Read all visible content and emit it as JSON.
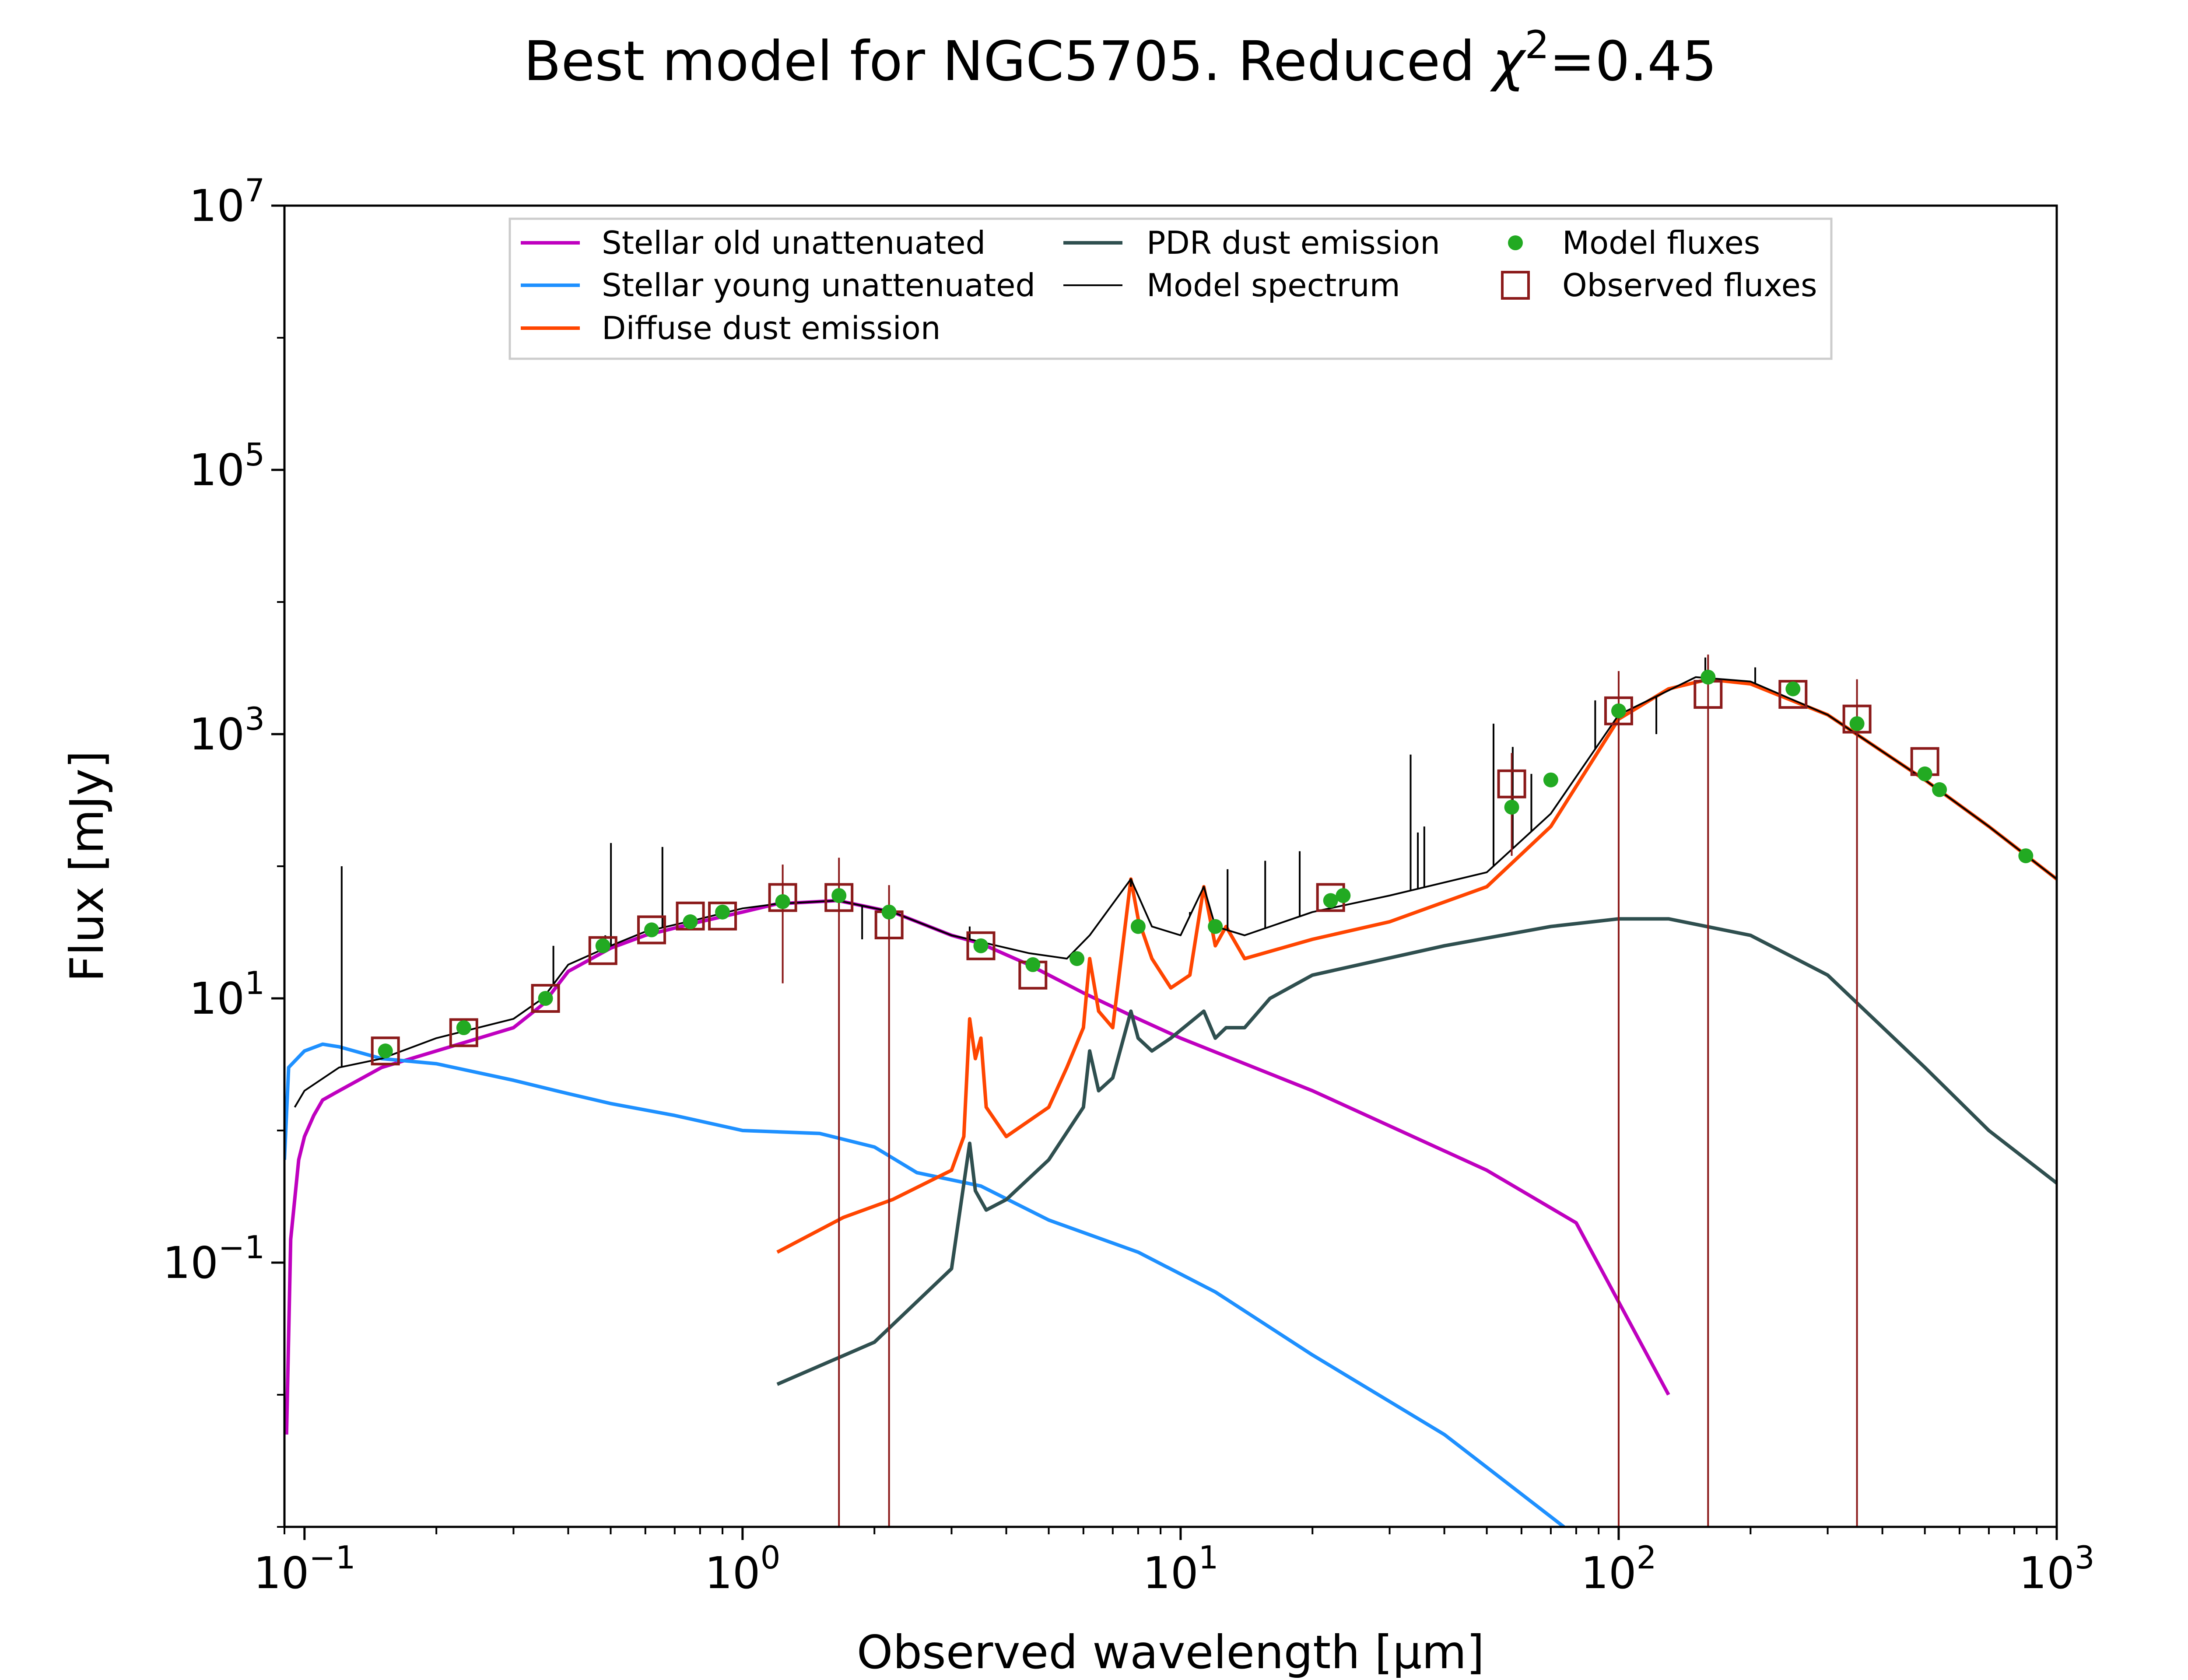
{
  "chart_data": {
    "type": "line",
    "title": "Best model for NGC5705. Reduced χ²=0.45",
    "title_parts": {
      "prefix": "Best model for NGC5705. Reduced ",
      "chi": "χ",
      "exp": "2",
      "suffix": "=0.45"
    },
    "xlabel": "Observed wavelength [μm]",
    "ylabel": "Flux [mJy]",
    "xscale": "log",
    "yscale": "log",
    "xlim": [
      0.09,
      1000
    ],
    "ylim": [
      0.001,
      10000000
    ],
    "x_ticks": [
      {
        "value": 0.1,
        "base": "10",
        "exp": "−1"
      },
      {
        "value": 1,
        "base": "10",
        "exp": "0"
      },
      {
        "value": 10,
        "base": "10",
        "exp": "1"
      },
      {
        "value": 100,
        "base": "10",
        "exp": "2"
      },
      {
        "value": 1000,
        "base": "10",
        "exp": "3"
      }
    ],
    "y_ticks": [
      {
        "value": 0.1,
        "base": "10",
        "exp": "−1"
      },
      {
        "value": 10,
        "base": "10",
        "exp": "1"
      },
      {
        "value": 1000,
        "base": "10",
        "exp": "3"
      },
      {
        "value": 100000,
        "base": "10",
        "exp": "5"
      },
      {
        "value": 10000000,
        "base": "10",
        "exp": "7"
      }
    ],
    "grid": false,
    "legend_position": "top-center",
    "legend": [
      {
        "label": "Stellar old unattenuated",
        "type": "line",
        "color": "#bf00bf"
      },
      {
        "label": "Stellar young unattenuated",
        "type": "line",
        "color": "#1e90ff"
      },
      {
        "label": "Diffuse dust emission",
        "type": "line",
        "color": "#ff4500"
      },
      {
        "label": "PDR dust emission",
        "type": "line",
        "color": "#2f4f4f"
      },
      {
        "label": "Model spectrum",
        "type": "line",
        "color": "#000000"
      },
      {
        "label": "Model fluxes",
        "type": "dot",
        "color": "#22aa22"
      },
      {
        "label": "Observed fluxes",
        "type": "square",
        "color": "#8b1a1a"
      }
    ],
    "series": [
      {
        "name": "Stellar old unattenuated",
        "color": "#bf00bf",
        "points": [
          [
            0.091,
            0.005
          ],
          [
            0.093,
            0.15
          ],
          [
            0.097,
            0.6
          ],
          [
            0.1,
            0.9
          ],
          [
            0.105,
            1.3
          ],
          [
            0.11,
            1.7
          ],
          [
            0.12,
            2.0
          ],
          [
            0.15,
            3.0
          ],
          [
            0.2,
            4.0
          ],
          [
            0.25,
            5.0
          ],
          [
            0.3,
            6.0
          ],
          [
            0.35,
            9.0
          ],
          [
            0.4,
            16
          ],
          [
            0.5,
            24
          ],
          [
            0.6,
            30
          ],
          [
            0.8,
            38
          ],
          [
            1.0,
            45
          ],
          [
            1.2,
            52
          ],
          [
            1.65,
            55
          ],
          [
            2.2,
            45
          ],
          [
            3.0,
            30
          ],
          [
            3.5,
            26
          ],
          [
            4.5,
            18
          ],
          [
            6.0,
            11
          ],
          [
            8.0,
            7
          ],
          [
            10,
            5
          ],
          [
            20,
            2
          ],
          [
            50,
            0.5
          ],
          [
            80,
            0.2
          ],
          [
            130,
            0.01
          ]
        ]
      },
      {
        "name": "Stellar young unattenuated",
        "color": "#1e90ff",
        "points": [
          [
            0.09,
            0.6
          ],
          [
            0.092,
            3.0
          ],
          [
            0.1,
            4.0
          ],
          [
            0.11,
            4.5
          ],
          [
            0.12,
            4.3
          ],
          [
            0.15,
            3.5
          ],
          [
            0.2,
            3.2
          ],
          [
            0.3,
            2.4
          ],
          [
            0.4,
            1.9
          ],
          [
            0.5,
            1.6
          ],
          [
            0.7,
            1.3
          ],
          [
            1.0,
            1.0
          ],
          [
            1.5,
            0.95
          ],
          [
            2.0,
            0.75
          ],
          [
            2.5,
            0.48
          ],
          [
            3.5,
            0.38
          ],
          [
            5.0,
            0.21
          ],
          [
            8.0,
            0.12
          ],
          [
            12,
            0.06
          ],
          [
            20,
            0.02
          ],
          [
            40,
            0.005
          ],
          [
            75,
            0.001
          ]
        ]
      },
      {
        "name": "Diffuse dust emission",
        "color": "#ff4500",
        "points": [
          [
            1.2,
            0.12
          ],
          [
            1.7,
            0.22
          ],
          [
            2.2,
            0.3
          ],
          [
            3.0,
            0.5
          ],
          [
            3.2,
            0.9
          ],
          [
            3.3,
            7.0
          ],
          [
            3.4,
            3.5
          ],
          [
            3.5,
            5.0
          ],
          [
            3.6,
            1.5
          ],
          [
            4.0,
            0.9
          ],
          [
            5.0,
            1.5
          ],
          [
            5.5,
            3.0
          ],
          [
            6.0,
            6.0
          ],
          [
            6.2,
            20
          ],
          [
            6.5,
            8.0
          ],
          [
            7.0,
            6.0
          ],
          [
            7.7,
            80
          ],
          [
            8.0,
            40
          ],
          [
            8.6,
            20
          ],
          [
            9.5,
            12
          ],
          [
            10.5,
            15
          ],
          [
            11.3,
            70
          ],
          [
            12,
            25
          ],
          [
            12.7,
            35
          ],
          [
            14,
            20
          ],
          [
            20,
            28
          ],
          [
            30,
            38
          ],
          [
            50,
            70
          ],
          [
            70,
            200
          ],
          [
            100,
            1300
          ],
          [
            130,
            2200
          ],
          [
            160,
            2600
          ],
          [
            200,
            2400
          ],
          [
            300,
            1400
          ],
          [
            500,
            450
          ],
          [
            700,
            200
          ],
          [
            1000,
            80
          ]
        ]
      },
      {
        "name": "PDR dust emission",
        "color": "#2f4f4f",
        "points": [
          [
            1.2,
            0.012
          ],
          [
            2.0,
            0.025
          ],
          [
            3.0,
            0.09
          ],
          [
            3.3,
            0.8
          ],
          [
            3.4,
            0.35
          ],
          [
            3.6,
            0.25
          ],
          [
            4.0,
            0.3
          ],
          [
            5.0,
            0.6
          ],
          [
            6.0,
            1.5
          ],
          [
            6.2,
            4.0
          ],
          [
            6.5,
            2.0
          ],
          [
            7.0,
            2.5
          ],
          [
            7.7,
            8.0
          ],
          [
            8.0,
            5.0
          ],
          [
            8.6,
            4.0
          ],
          [
            9.5,
            5.0
          ],
          [
            11.3,
            8.0
          ],
          [
            12,
            5.0
          ],
          [
            12.7,
            6.0
          ],
          [
            14,
            6.0
          ],
          [
            16,
            10
          ],
          [
            20,
            15
          ],
          [
            40,
            25
          ],
          [
            70,
            35
          ],
          [
            100,
            40
          ],
          [
            130,
            40
          ],
          [
            200,
            30
          ],
          [
            300,
            15
          ],
          [
            500,
            3.0
          ],
          [
            700,
            1.0
          ],
          [
            1000,
            0.4
          ]
        ]
      },
      {
        "name": "Model spectrum",
        "color": "#000000",
        "points": [
          [
            0.095,
            1.5
          ],
          [
            0.1,
            2.0
          ],
          [
            0.12,
            3.0
          ],
          [
            0.15,
            3.5
          ],
          [
            0.2,
            5.0
          ],
          [
            0.3,
            7.0
          ],
          [
            0.35,
            10
          ],
          [
            0.4,
            18
          ],
          [
            0.5,
            25
          ],
          [
            0.6,
            32
          ],
          [
            0.8,
            40
          ],
          [
            1.0,
            48
          ],
          [
            1.2,
            52
          ],
          [
            1.65,
            55
          ],
          [
            2.2,
            45
          ],
          [
            3.0,
            30
          ],
          [
            3.3,
            28
          ],
          [
            4.5,
            22
          ],
          [
            5.5,
            20
          ],
          [
            6.2,
            30
          ],
          [
            7.7,
            80
          ],
          [
            8.6,
            35
          ],
          [
            10,
            30
          ],
          [
            11.3,
            70
          ],
          [
            12,
            35
          ],
          [
            14,
            30
          ],
          [
            20,
            45
          ],
          [
            30,
            60
          ],
          [
            50,
            90
          ],
          [
            70,
            250
          ],
          [
            100,
            1400
          ],
          [
            150,
            2700
          ],
          [
            200,
            2500
          ],
          [
            300,
            1400
          ],
          [
            500,
            450
          ],
          [
            700,
            200
          ],
          [
            1000,
            80
          ]
        ]
      }
    ],
    "emission_lines": [
      [
        0.1216,
        100
      ],
      [
        0.37,
        25
      ],
      [
        0.4861,
        30
      ],
      [
        0.5007,
        150
      ],
      [
        0.6563,
        140
      ],
      [
        0.6731,
        35
      ],
      [
        1.875,
        28
      ],
      [
        3.3,
        35
      ],
      [
        7.7,
        70
      ],
      [
        10.5,
        45
      ],
      [
        12.8,
        95
      ],
      [
        15.6,
        110
      ],
      [
        18.7,
        130
      ],
      [
        33.5,
        700
      ],
      [
        34.8,
        180
      ],
      [
        36,
        200
      ],
      [
        51.8,
        1200
      ],
      [
        57.3,
        800
      ],
      [
        63.2,
        500
      ],
      [
        88.4,
        1800
      ],
      [
        121.9,
        1000
      ],
      [
        157.7,
        3800
      ],
      [
        205,
        3200
      ]
    ],
    "model_fluxes": [
      [
        0.153,
        4.0
      ],
      [
        0.231,
        6.0
      ],
      [
        0.355,
        10
      ],
      [
        0.48,
        25
      ],
      [
        0.62,
        33
      ],
      [
        0.76,
        38
      ],
      [
        0.9,
        45
      ],
      [
        1.235,
        54
      ],
      [
        1.66,
        60
      ],
      [
        2.16,
        45
      ],
      [
        3.5,
        25
      ],
      [
        4.6,
        18
      ],
      [
        5.8,
        20
      ],
      [
        8.0,
        35
      ],
      [
        12,
        35
      ],
      [
        22,
        55
      ],
      [
        23.5,
        60
      ],
      [
        57,
        280
      ],
      [
        70,
        450
      ],
      [
        100,
        1500
      ],
      [
        160,
        2700
      ],
      [
        250,
        2200
      ],
      [
        350,
        1200
      ],
      [
        500,
        500
      ],
      [
        540,
        380
      ],
      [
        850,
        120
      ]
    ],
    "observed_fluxes": [
      {
        "x": 0.153,
        "y": 4.0,
        "err": 0
      },
      {
        "x": 0.231,
        "y": 5.5,
        "err": 0
      },
      {
        "x": 0.355,
        "y": 10,
        "err": 0
      },
      {
        "x": 0.48,
        "y": 23,
        "err": 0
      },
      {
        "x": 0.62,
        "y": 33,
        "err": 0
      },
      {
        "x": 0.76,
        "y": 42,
        "err": 0
      },
      {
        "x": 0.9,
        "y": 42,
        "err": 0
      },
      {
        "x": 1.235,
        "y": 58,
        "err": 45
      },
      {
        "x": 1.66,
        "y": 58,
        "err": 58
      },
      {
        "x": 2.16,
        "y": 36,
        "err": 36
      },
      {
        "x": 3.5,
        "y": 25,
        "err": 0
      },
      {
        "x": 4.6,
        "y": 15,
        "err": 0
      },
      {
        "x": 22,
        "y": 58,
        "err": 0
      },
      {
        "x": 57,
        "y": 420,
        "err": 300
      },
      {
        "x": 100,
        "y": 1500,
        "err": 1500
      },
      {
        "x": 160,
        "y": 2000,
        "err": 2000
      },
      {
        "x": 250,
        "y": 2000,
        "err": 0
      },
      {
        "x": 350,
        "y": 1300,
        "err": 1300
      },
      {
        "x": 500,
        "y": 620,
        "err": 0
      }
    ]
  }
}
